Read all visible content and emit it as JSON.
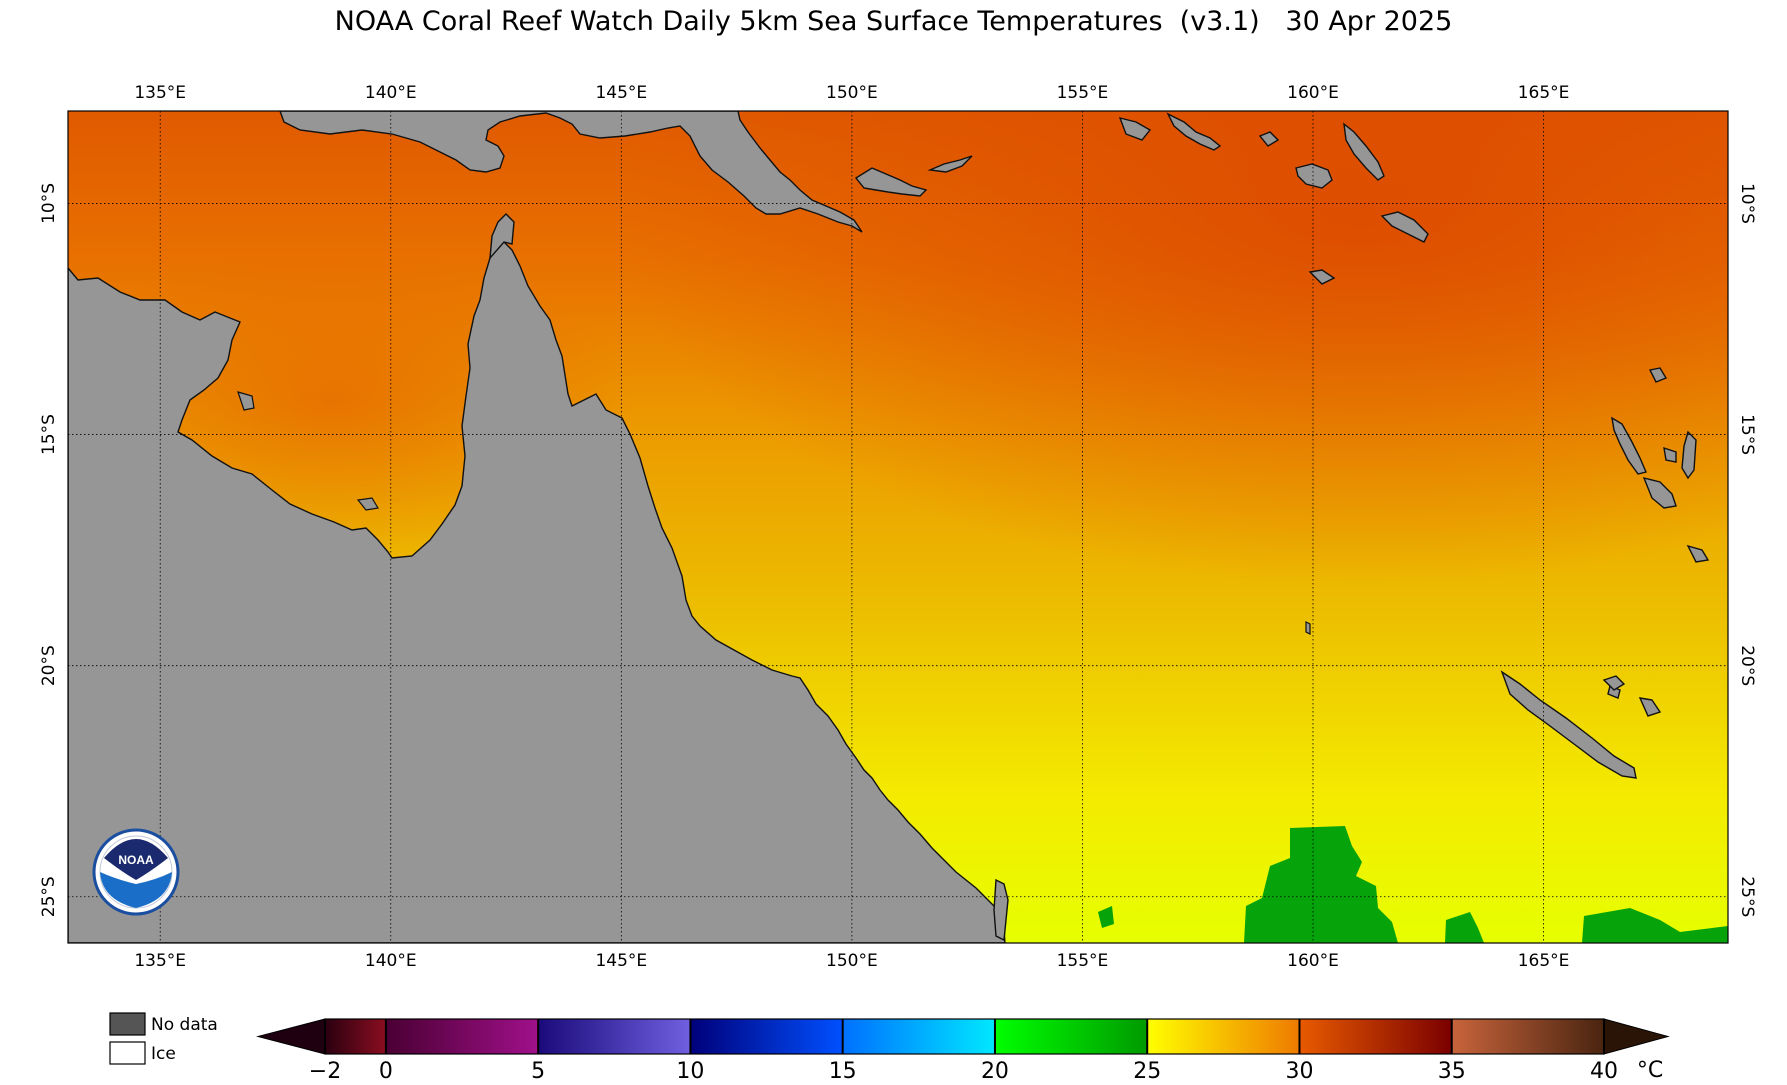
{
  "title": "NOAA Coral Reef Watch Daily 5km Sea Surface Temperatures  (v3.1)   30 Apr 2025",
  "map": {
    "lon_min": 133.0,
    "lon_max": 169.0,
    "lat_min": -26.0,
    "lat_max": -8.0,
    "lon_ticks": [
      135,
      140,
      145,
      150,
      155,
      160,
      165
    ],
    "lon_labels": [
      "135°E",
      "140°E",
      "145°E",
      "150°E",
      "155°E",
      "160°E",
      "165°E"
    ],
    "lat_ticks": [
      -10,
      -15,
      -20,
      -25
    ],
    "lat_labels": [
      "10°S",
      "15°S",
      "20°S",
      "25°S"
    ],
    "land_color": "#969696",
    "grid": "dotted"
  },
  "legend": {
    "nodata_label": "No data",
    "ice_label": "Ice",
    "nodata_color": "#555555",
    "ice_color": "#ffffff"
  },
  "colorbar": {
    "ticks": [
      -2,
      0,
      5,
      10,
      15,
      20,
      25,
      30,
      35,
      40
    ],
    "tick_labels": [
      "−2",
      "0",
      "5",
      "10",
      "15",
      "20",
      "25",
      "30",
      "35",
      "40"
    ],
    "unit": "°C",
    "segments": [
      {
        "from": -2,
        "to": 0,
        "colors": [
          "#2a0010",
          "#8a0e20"
        ]
      },
      {
        "from": 0,
        "to": 5,
        "colors": [
          "#4a0033",
          "#a0108a"
        ]
      },
      {
        "from": 5,
        "to": 10,
        "colors": [
          "#1a0a7a",
          "#7060e0"
        ]
      },
      {
        "from": 10,
        "to": 15,
        "colors": [
          "#00007a",
          "#0050ff"
        ]
      },
      {
        "from": 15,
        "to": 20,
        "colors": [
          "#0070ff",
          "#00e8ff"
        ]
      },
      {
        "from": 20,
        "to": 25,
        "colors": [
          "#00ff00",
          "#009a00"
        ]
      },
      {
        "from": 25,
        "to": 30,
        "colors": [
          "#ffff00",
          "#ee7a00"
        ]
      },
      {
        "from": 30,
        "to": 35,
        "colors": [
          "#e85a00",
          "#7a0000"
        ]
      },
      {
        "from": 35,
        "to": 40,
        "colors": [
          "#c8643c",
          "#4a2410"
        ]
      }
    ],
    "low_extend_color": "#1e0010",
    "high_extend_color": "#2a1406"
  },
  "logo_text": "NOAA"
}
